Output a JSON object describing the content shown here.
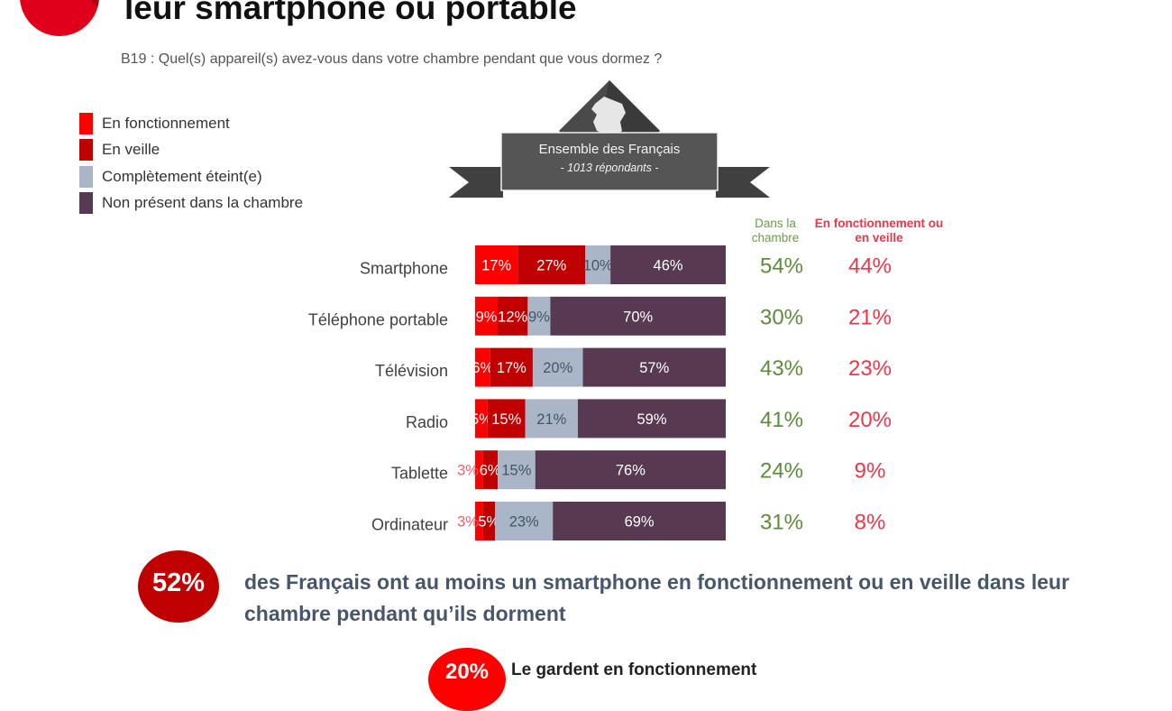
{
  "header": {
    "title": "leur smartphone ou portable",
    "question": "B19 : Quel(s) appareil(s) avez-vous dans votre chambre pendant que vous dormez ?"
  },
  "banner": {
    "title": "Ensemble des Français",
    "subtitle": "- 1013 répondants -",
    "icon": "france-map-icon"
  },
  "colors": {
    "en_fonctionnement": "#ff0000",
    "en_veille": "#c00000",
    "eteint": "#aab6c8",
    "non_present": "#573a52",
    "green_text": "#5e8c3a",
    "red_text": "#e8384a"
  },
  "columns": {
    "dans_la_chambre": "Dans la chambre",
    "fonctionnement_veille": "En fonctionnement ou en veille"
  },
  "chart_data": {
    "type": "bar",
    "orientation": "horizontal-stacked-100",
    "title": "",
    "xlabel": "",
    "ylabel": "",
    "xlim": [
      0,
      100
    ],
    "legend_position": "top-left",
    "categories": [
      "Smartphone",
      "Téléphone portable",
      "Télévision",
      "Radio",
      "Tablette",
      "Ordinateur"
    ],
    "series": [
      {
        "name": "En fonctionnement",
        "color": "#ff0000",
        "values": [
          17,
          9,
          6,
          5,
          3,
          3
        ],
        "labels": [
          "17%",
          "9%",
          "6%",
          "5%",
          "3%",
          "3%"
        ]
      },
      {
        "name": "En veille",
        "color": "#c00000",
        "values": [
          27,
          12,
          17,
          15,
          6,
          5
        ],
        "labels": [
          "27%",
          "12%",
          "17%",
          "15%",
          "6%",
          "5%"
        ]
      },
      {
        "name": "Complètement éteint(e)",
        "color": "#aab6c8",
        "values": [
          10,
          9,
          20,
          21,
          15,
          23
        ],
        "labels": [
          "10%",
          "9%",
          "20%",
          "21%",
          "15%",
          "23%"
        ]
      },
      {
        "name": "Non présent dans la chambre",
        "color": "#573a52",
        "values": [
          46,
          70,
          57,
          59,
          76,
          69
        ],
        "labels": [
          "46%",
          "70%",
          "57%",
          "59%",
          "76%",
          "69%"
        ]
      }
    ],
    "dans_la_chambre": [
      "54%",
      "30%",
      "43%",
      "41%",
      "24%",
      "31%"
    ],
    "fonctionnement_ou_veille": [
      "44%",
      "21%",
      "23%",
      "20%",
      "9%",
      "8%"
    ]
  },
  "callouts": [
    {
      "value": "52%",
      "text": "des Français ont au moins un smartphone en fonctionnement ou en veille dans leur chambre pendant qu’ils dorment"
    },
    {
      "value": "20%",
      "text": "Le gardent en fonctionnement"
    }
  ]
}
